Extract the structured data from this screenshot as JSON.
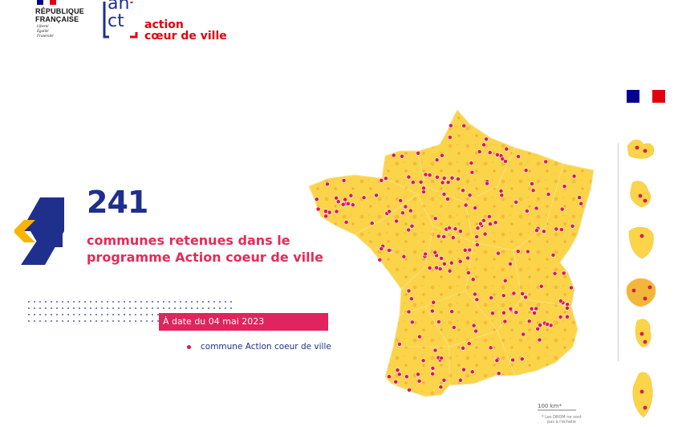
{
  "header": {
    "republic_lines": [
      "RÉPUBLIQUE",
      "FRANÇAISE"
    ],
    "motto_lines": [
      "Liberté",
      "Égalité",
      "Fraternité"
    ],
    "anct_logo_text": [
      "an",
      "ct"
    ],
    "program_lines": [
      "action",
      "cœur de ville"
    ]
  },
  "main": {
    "count": "241",
    "subtitle_lines": [
      "communes retenues dans le",
      "programme Action coeur de ville"
    ],
    "date_label": "À date du 04 mai 2023"
  },
  "legend": {
    "label": "commune Action coeur de ville"
  },
  "map": {
    "scale_label": "100 km*",
    "footnote_lines": [
      "* Les DROM ne sont",
      "pas à l'échelle"
    ],
    "colors": {
      "land": "#fbd449",
      "land_dark": "#f2b73a",
      "border": "#f7e7a8",
      "marker": "#d81b52",
      "brand_blue": "#1f2f8c",
      "brand_red": "#e1000f"
    },
    "overseas": [
      "Guadeloupe",
      "Martinique",
      "Guyane",
      "La Réunion",
      "Mayotte",
      "Corse"
    ]
  }
}
